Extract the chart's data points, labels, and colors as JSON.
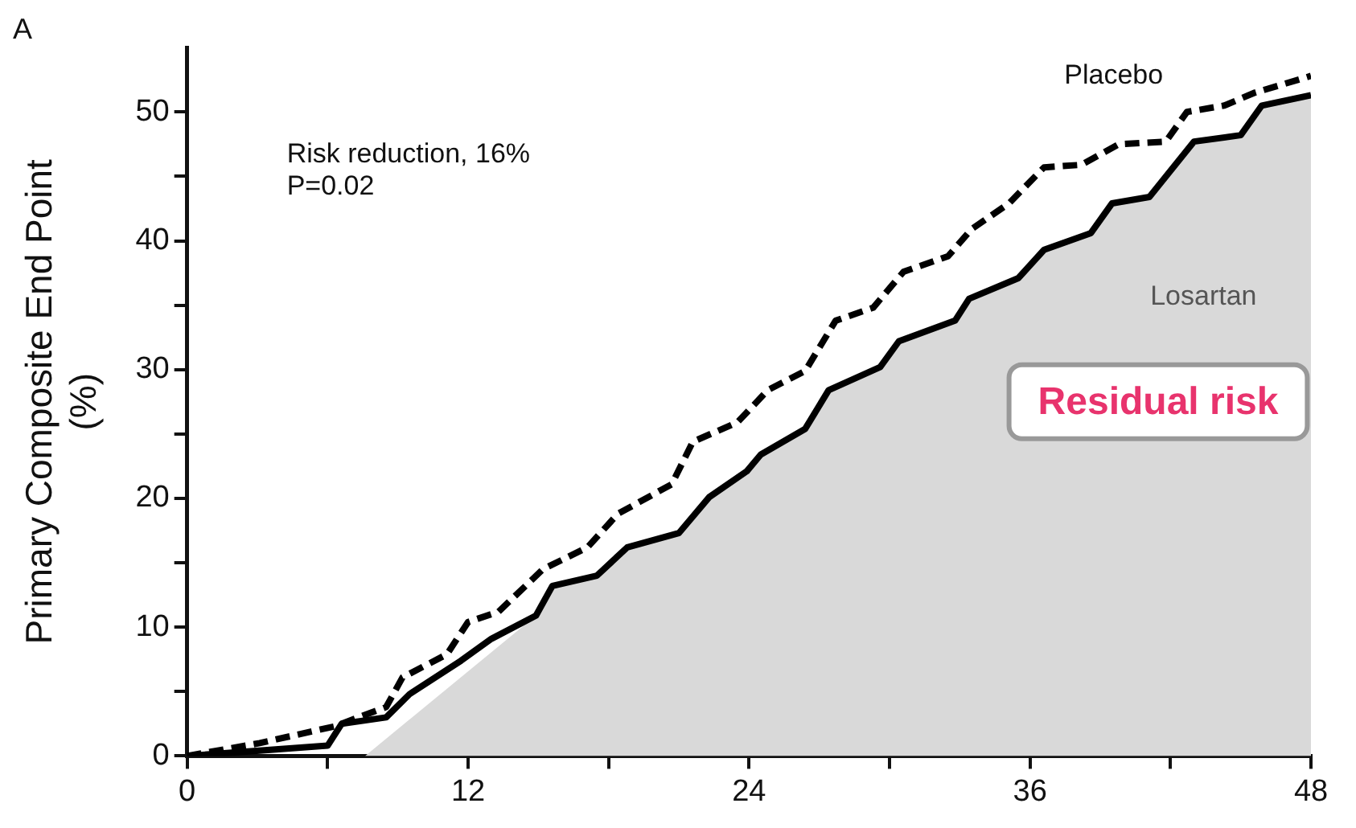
{
  "chart_data": {
    "type": "line",
    "title": "A",
    "ylabel": "Primary Composite End Point\n(%)",
    "xlim": [
      0,
      48
    ],
    "xticks": [
      0,
      {
        "value": 6,
        "label": null
      },
      12,
      {
        "value": 18,
        "label": null
      },
      24,
      {
        "value": 30,
        "label": null
      },
      36,
      {
        "value": 42,
        "label": null
      },
      48
    ],
    "ylim": [
      0,
      55
    ],
    "yticks": [
      0,
      {
        "value": 5,
        "label": null
      },
      10,
      {
        "value": 15,
        "label": null
      },
      20,
      {
        "value": 25,
        "label": null
      },
      30,
      {
        "value": 35,
        "label": null
      },
      40,
      {
        "value": 45,
        "label": null
      },
      50
    ],
    "grid": false,
    "legend": false,
    "marker": "none",
    "series": [
      {
        "type": "area",
        "color": "#d9d9d9",
        "x": [
          7.6,
          14.9,
          15.6,
          17.5,
          18.8,
          21.0,
          22.3,
          23.9,
          24.5,
          26.4,
          27.4,
          29.6,
          30.4,
          32.8,
          33.4,
          35.5,
          36.6,
          38.6,
          39.5,
          41.1,
          43.0,
          45.0,
          45.9,
          48
        ],
        "values": [
          0,
          10.9,
          13.2,
          14.0,
          16.2,
          17.3,
          20.1,
          22.1,
          23.4,
          25.4,
          28.4,
          30.2,
          32.2,
          33.8,
          35.5,
          37.1,
          39.3,
          40.6,
          42.9,
          43.4,
          47.7,
          48.2,
          50.5,
          51.3
        ]
      },
      {
        "name": "Placebo",
        "color": "#000000",
        "line_style": "dashed",
        "x": [
          0,
          3.1,
          6.3,
          8.5,
          9.2,
          11.1,
          12.0,
          13.3,
          15.2,
          17.1,
          18.4,
          20.7,
          21.6,
          23.5,
          24.8,
          26.4,
          27.7,
          29.3,
          30.6,
          32.5,
          33.5,
          35.1,
          36.6,
          38.2,
          39.8,
          41.8,
          42.7,
          44.3,
          45.6,
          48
        ],
        "values": [
          0,
          1.0,
          2.3,
          3.8,
          6.1,
          7.9,
          10.4,
          11.2,
          14.5,
          16.2,
          18.8,
          21.1,
          24.4,
          25.9,
          28.4,
          29.9,
          33.8,
          34.8,
          37.6,
          38.8,
          40.9,
          42.9,
          45.7,
          45.9,
          47.5,
          47.7,
          50.0,
          50.5,
          51.5,
          52.8
        ]
      },
      {
        "name": "Losartan",
        "color": "#000000",
        "line_style": "solid",
        "x": [
          0,
          6.0,
          6.6,
          8.5,
          9.5,
          11.7,
          13.0,
          14.9,
          15.6,
          17.5,
          18.8,
          21.0,
          22.3,
          23.9,
          24.5,
          26.4,
          27.4,
          29.6,
          30.4,
          32.8,
          33.4,
          35.5,
          36.6,
          38.6,
          39.5,
          41.1,
          43.0,
          45.0,
          45.9,
          48
        ],
        "values": [
          0,
          0.8,
          2.5,
          3.0,
          4.8,
          7.4,
          9.1,
          10.9,
          13.2,
          14.0,
          16.2,
          17.3,
          20.1,
          22.1,
          23.4,
          25.4,
          28.4,
          30.2,
          32.2,
          33.8,
          35.5,
          37.1,
          39.3,
          40.6,
          42.9,
          43.4,
          47.7,
          48.2,
          50.5,
          51.3
        ]
      }
    ],
    "annotations": [
      "Risk reduction, 16%\nP=0.02",
      "Residual risk"
    ]
  }
}
